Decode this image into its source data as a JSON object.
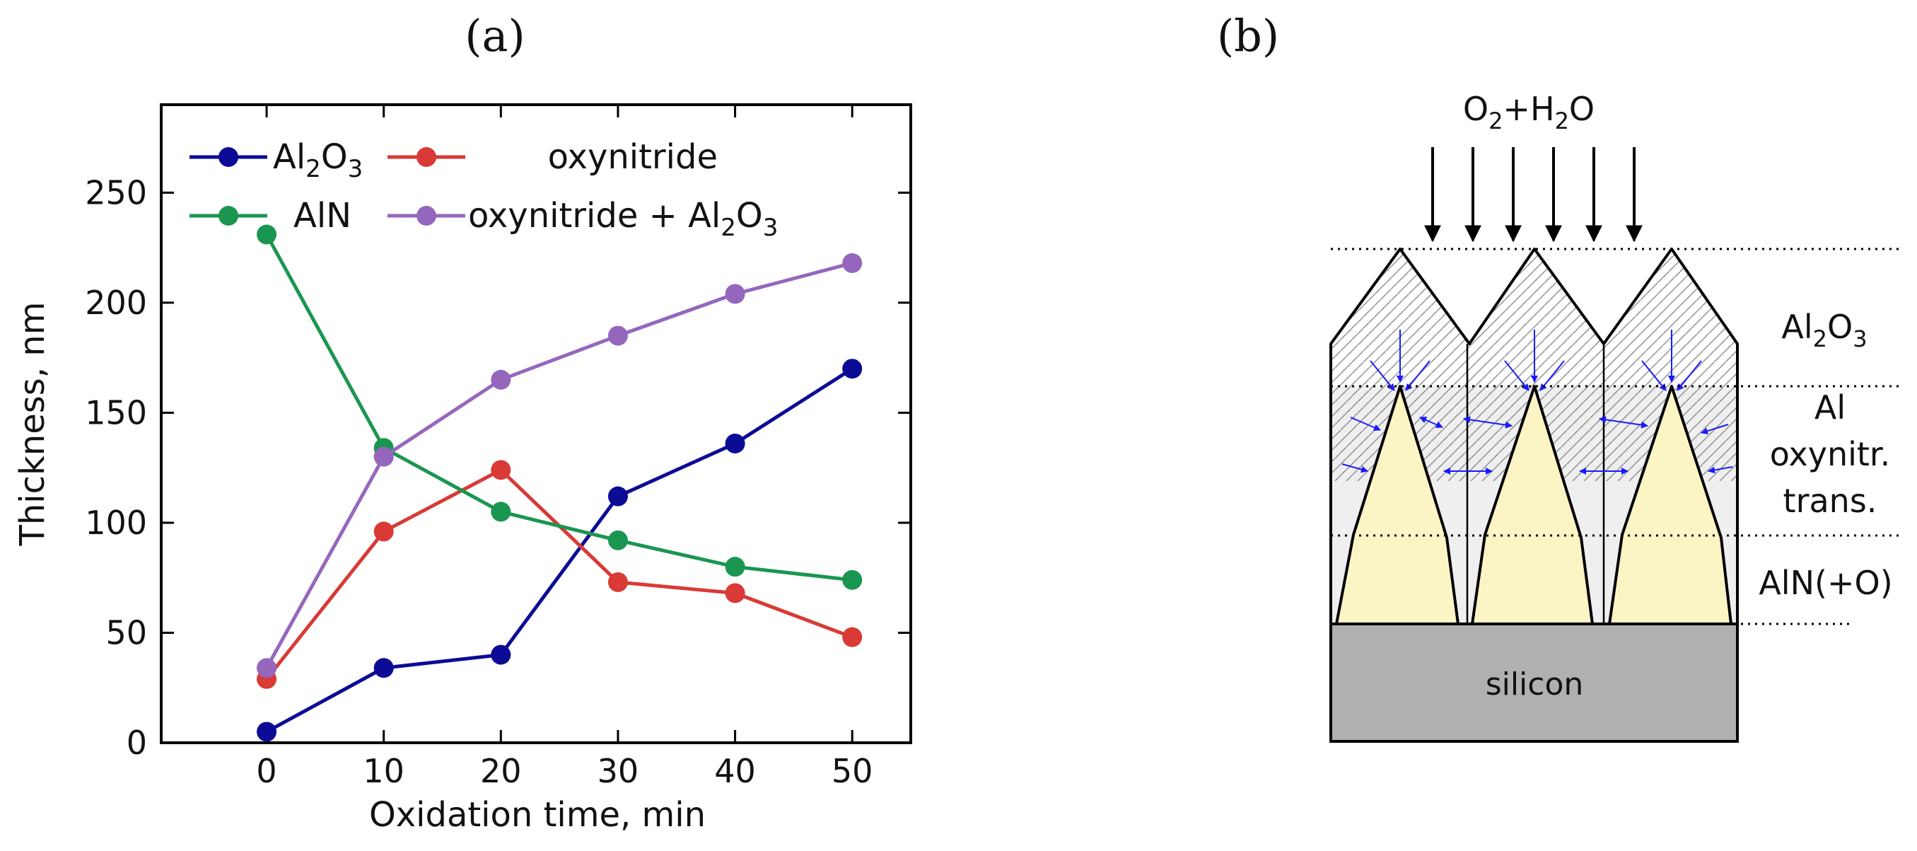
{
  "chart_data": {
    "type": "line",
    "panel_label": "(a)",
    "xlabel": "Oxidation time, min",
    "ylabel": "Thickness, nm",
    "x": [
      0,
      10,
      20,
      30,
      40,
      50
    ],
    "xlim": [
      -9,
      55
    ],
    "ylim": [
      0,
      290
    ],
    "xticks": [
      0,
      10,
      20,
      30,
      40,
      50
    ],
    "yticks": [
      0,
      50,
      100,
      150,
      200,
      250
    ],
    "grid": false,
    "legend_position": "top",
    "series": [
      {
        "name": "Al2O3",
        "label_parts": [
          "Al",
          "2",
          "O",
          "3"
        ],
        "color": "#0b0b96",
        "values": [
          5,
          34,
          40,
          112,
          136,
          170
        ]
      },
      {
        "name": "oxynitride",
        "label_parts": [
          "oxynitride"
        ],
        "color": "#d93a35",
        "values": [
          29,
          96,
          124,
          73,
          68,
          48
        ]
      },
      {
        "name": "AlN",
        "label_parts": [
          "AlN"
        ],
        "color": "#1a9650",
        "values": [
          231,
          134,
          105,
          92,
          80,
          74
        ]
      },
      {
        "name": "oxynitride + Al2O3",
        "label_parts": [
          "oxynitride + Al",
          "2",
          "O",
          "3"
        ],
        "color": "#9467bd",
        "values": [
          34,
          130,
          165,
          185,
          204,
          218
        ]
      }
    ]
  },
  "diagram": {
    "panel_label": "(b)",
    "flux_label": {
      "a": "O",
      "b": "2",
      "c": "+H",
      "d": "2",
      "e": "O"
    },
    "layer_al2o3": {
      "a": "Al",
      "b": "2",
      "c": "O",
      "d": "3"
    },
    "layer_transition": [
      "Al",
      "oxynitr.",
      "trans."
    ],
    "layer_aln": "AlN(+O)",
    "substrate": "silicon",
    "colors": {
      "substrate": "#b0b0b0",
      "grain": "#fbf4c4",
      "transition_bg": "#efefef",
      "arrow": "#1a1aff"
    }
  }
}
